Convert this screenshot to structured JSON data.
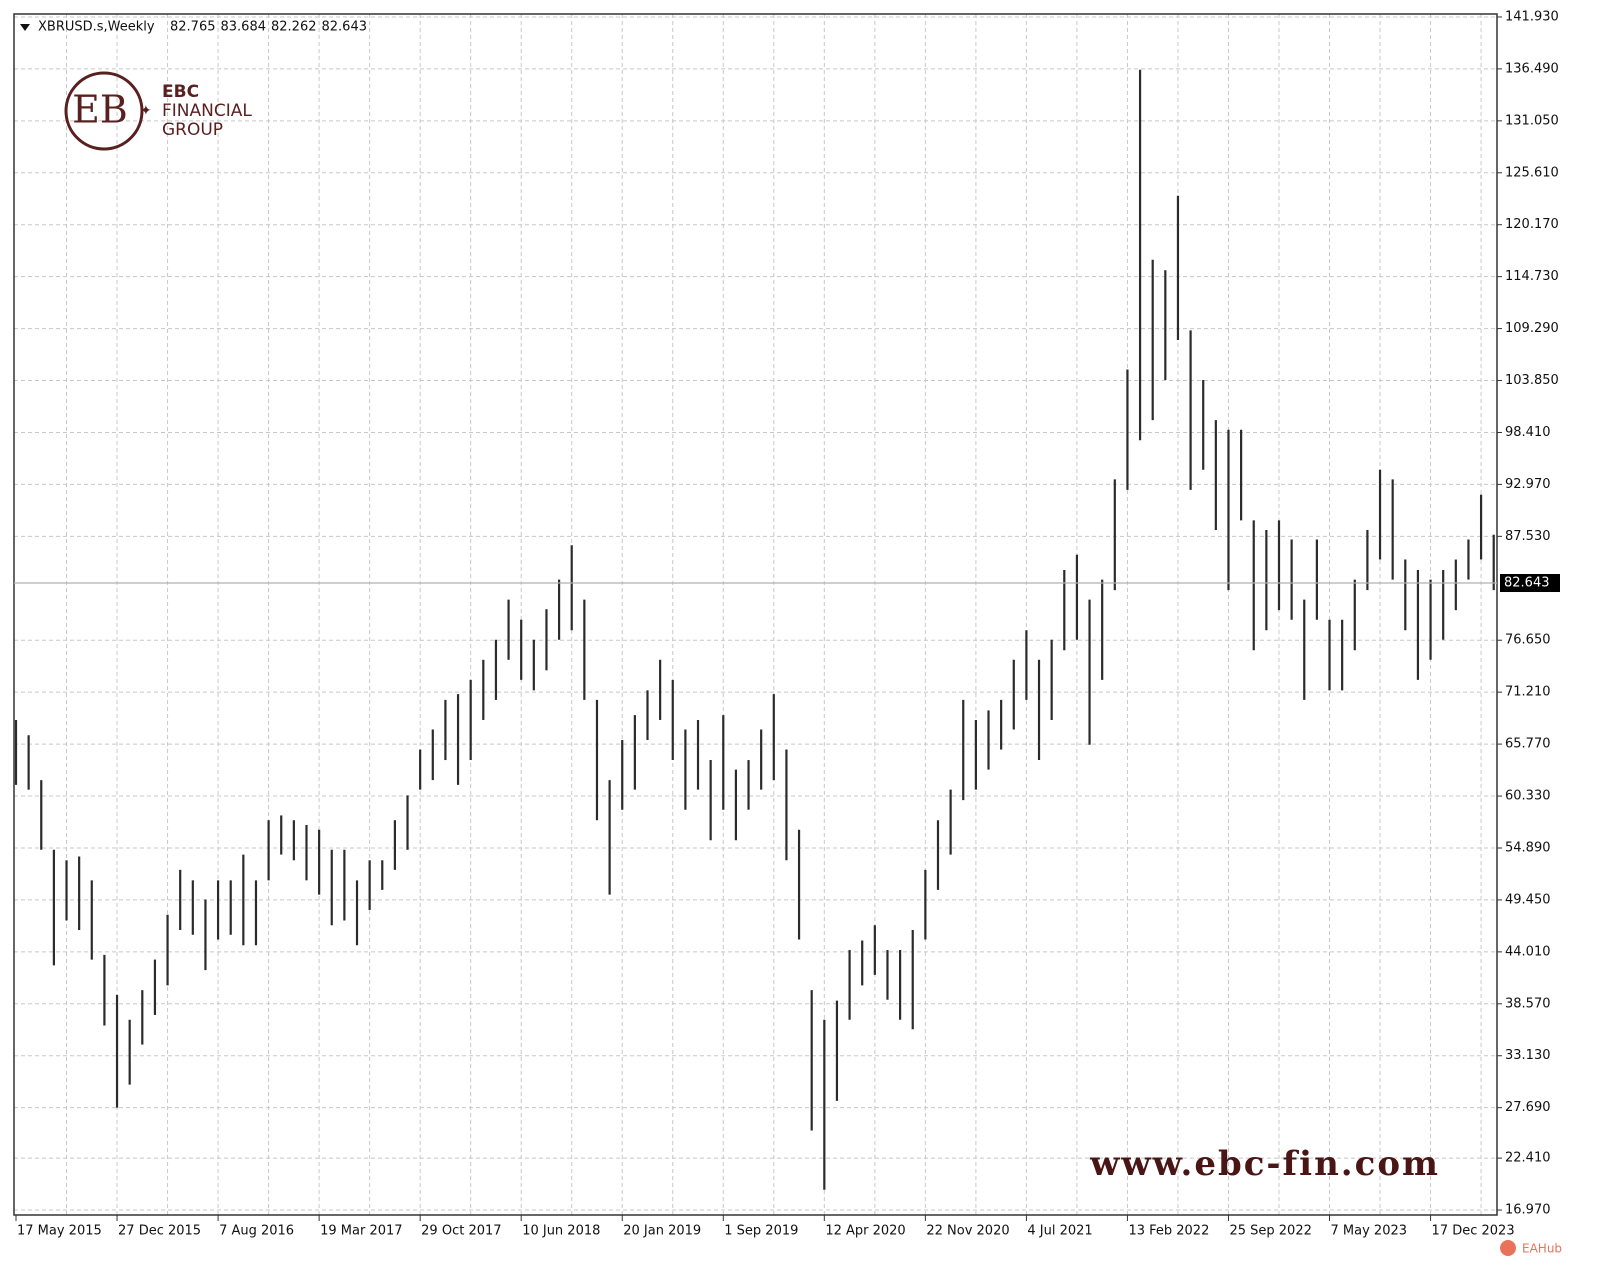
{
  "chart_data": {
    "type": "ohlc",
    "symbol": "XBRUSD.s,Weekly",
    "header_values": [
      82.765,
      83.684,
      82.262,
      82.643
    ],
    "last_price": {
      "value": 82.643,
      "label": "82.643"
    },
    "logo": {
      "name": "EBC",
      "line1": "FINANCIAL",
      "line2": "GROUP"
    },
    "watermark": "www.ebc-fin.com",
    "badge": "EAHub",
    "color": "#2b2b2b",
    "grid": true,
    "categories": [
      "17 May 2015",
      null,
      null,
      null,
      null,
      null,
      null,
      null,
      "27 Dec 2015",
      null,
      null,
      null,
      null,
      null,
      null,
      null,
      "7 Aug 2016",
      null,
      null,
      null,
      null,
      null,
      null,
      null,
      "19 Mar 2017",
      null,
      null,
      null,
      null,
      null,
      null,
      null,
      "29 Oct 2017",
      null,
      null,
      null,
      null,
      null,
      null,
      null,
      "10 Jun 2018",
      null,
      null,
      null,
      null,
      null,
      null,
      null,
      "20 Jan 2019",
      null,
      null,
      null,
      null,
      null,
      null,
      null,
      "1 Sep 2019",
      null,
      null,
      null,
      null,
      null,
      null,
      null,
      "12 Apr 2020",
      null,
      null,
      null,
      null,
      null,
      null,
      null,
      "22 Nov 2020",
      null,
      null,
      null,
      null,
      null,
      null,
      null,
      "4 Jul 2021",
      null,
      null,
      null,
      null,
      null,
      null,
      null,
      "13 Feb 2022",
      null,
      null,
      null,
      null,
      null,
      null,
      null,
      "25 Sep 2022",
      null,
      null,
      null,
      null,
      null,
      null,
      null,
      "7 May 2023",
      null,
      null,
      null,
      null,
      null,
      null,
      null,
      "17 Dec 2023",
      null,
      null,
      null,
      null,
      null
    ],
    "high": [
      68.3,
      66.7,
      62,
      54.7,
      53.6,
      54,
      51.5,
      43.7,
      39.5,
      36.9,
      40,
      43.2,
      47.9,
      52.6,
      51.5,
      49.5,
      51.5,
      51.5,
      54.2,
      51.5,
      57.8,
      58.3,
      57.8,
      57.3,
      56.8,
      54.7,
      54.7,
      51.5,
      53.6,
      53.6,
      57.8,
      60.4,
      65.2,
      67.3,
      70.4,
      71,
      72.5,
      74.6,
      76.7,
      80.9,
      78.8,
      76.7,
      79.9,
      83,
      86.6,
      80.9,
      70.4,
      62,
      66.2,
      68.8,
      71.4,
      74.6,
      72.5,
      67.3,
      68.3,
      64.1,
      68.8,
      63.1,
      64.1,
      67.3,
      71,
      65.2,
      56.8,
      40,
      36.9,
      38.9,
      44.2,
      45.2,
      46.8,
      44.2,
      44.2,
      46.3,
      52.6,
      57.8,
      61,
      70.4,
      68.3,
      69.3,
      70.4,
      74.6,
      77.7,
      74.6,
      76.7,
      84,
      85.6,
      80.9,
      83,
      93.5,
      105,
      136.4,
      116.5,
      115.4,
      123.2,
      109.1,
      103.9,
      99.7,
      98.7,
      98.7,
      89.2,
      88.2,
      89.2,
      87.2,
      80.9,
      87.2,
      78.8,
      78.8,
      83,
      88.2,
      94.5,
      93.5,
      85.1,
      84,
      83,
      84,
      85.1,
      87.2,
      91.9,
      87.7
    ],
    "low": [
      61.5,
      61,
      54.7,
      42.6,
      47.3,
      46.3,
      43.2,
      36.3,
      27.7,
      30.1,
      34.3,
      37.4,
      40.5,
      46.3,
      45.8,
      42.1,
      45.3,
      45.8,
      44.7,
      44.7,
      51.5,
      54.2,
      53.6,
      51.5,
      50,
      46.8,
      47.3,
      44.7,
      48.4,
      50.5,
      52.6,
      54.7,
      61,
      62,
      64.1,
      61.5,
      64.1,
      68.3,
      70.4,
      74.6,
      72.5,
      71.4,
      73.5,
      76.7,
      77.7,
      70.4,
      57.8,
      50,
      58.9,
      61,
      66.2,
      68.3,
      64.1,
      58.9,
      61,
      55.7,
      58.9,
      55.7,
      58.9,
      61,
      62,
      53.6,
      45.3,
      25.3,
      19.1,
      28.4,
      36.9,
      40.5,
      41.6,
      39,
      36.9,
      35.9,
      45.3,
      50.5,
      54.2,
      59.9,
      61,
      63.1,
      65.2,
      67.3,
      70.4,
      64.1,
      68.3,
      75.6,
      76.7,
      65.7,
      72.5,
      81.9,
      92.4,
      97.6,
      99.7,
      103.9,
      108.1,
      92.4,
      94.5,
      88.2,
      81.9,
      89.2,
      75.6,
      77.7,
      79.8,
      78.8,
      70.4,
      78.8,
      71.4,
      71.4,
      75.6,
      81.9,
      85.1,
      83,
      77.7,
      72.5,
      74.6,
      76.7,
      79.8,
      83,
      85.1,
      81.9
    ],
    "ylim": [
      16.45,
      142.24
    ],
    "yticks": [
      {
        "value": 141.93,
        "label": "141.930"
      },
      {
        "value": 136.49,
        "label": "136.490"
      },
      {
        "value": 131.05,
        "label": "131.050"
      },
      {
        "value": 125.61,
        "label": "125.610"
      },
      {
        "value": 120.17,
        "label": "120.170"
      },
      {
        "value": 114.73,
        "label": "114.730"
      },
      {
        "value": 109.29,
        "label": "109.290"
      },
      {
        "value": 103.85,
        "label": "103.850"
      },
      {
        "value": 98.41,
        "label": "98.410"
      },
      {
        "value": 92.97,
        "label": "92.970"
      },
      {
        "value": 87.53,
        "label": "87.530"
      },
      {
        "value": 76.65,
        "label": "76.650"
      },
      {
        "value": 71.21,
        "label": "71.210"
      },
      {
        "value": 65.77,
        "label": "65.770"
      },
      {
        "value": 60.33,
        "label": "60.330"
      },
      {
        "value": 54.89,
        "label": "54.890"
      },
      {
        "value": 49.45,
        "label": "49.450"
      },
      {
        "value": 44.01,
        "label": "44.010"
      },
      {
        "value": 38.57,
        "label": "38.570"
      },
      {
        "value": 33.13,
        "label": "33.130"
      },
      {
        "value": 27.69,
        "label": "27.690"
      },
      {
        "value": 22.41,
        "label": "22.410"
      },
      {
        "value": 16.97,
        "label": "16.970"
      }
    ]
  }
}
